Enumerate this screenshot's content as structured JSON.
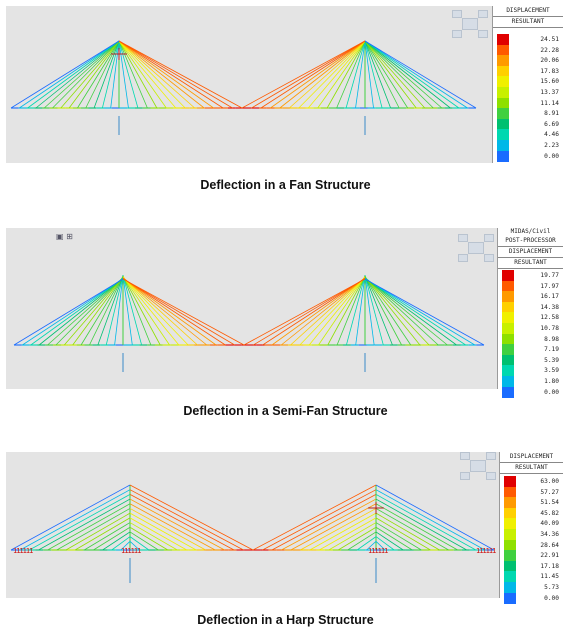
{
  "figures": [
    {
      "id": "fan",
      "caption": "Deflection in a Fan Structure",
      "legend_header": [
        "DISPLACEMENT",
        "RESULTANT"
      ],
      "legend_values": [
        "24.51",
        "22.28",
        "20.06",
        "17.83",
        "15.60",
        "13.37",
        "11.14",
        "8.91",
        "6.69",
        "4.46",
        "2.23",
        "0.00"
      ]
    },
    {
      "id": "semifan",
      "caption": "Deflection in a Semi-Fan Structure",
      "legend_header": [
        "MIDAS/Civil",
        "POST-PROCESSOR",
        "DISPLACEMENT",
        "RESULTANT"
      ],
      "legend_values": [
        "19.77",
        "17.97",
        "16.17",
        "14.38",
        "12.58",
        "10.78",
        "8.98",
        "7.19",
        "5.39",
        "3.59",
        "1.80",
        "0.00"
      ]
    },
    {
      "id": "harp",
      "caption": "Deflection in a Harp Structure",
      "legend_header": [
        "DISPLACEMENT",
        "RESULTANT"
      ],
      "legend_values": [
        "63.00",
        "57.27",
        "51.54",
        "45.82",
        "40.09",
        "34.36",
        "28.64",
        "22.91",
        "17.18",
        "11.45",
        "5.73",
        "0.00"
      ]
    }
  ],
  "legend_colors": [
    "#e00000",
    "#ff5a00",
    "#ff9a00",
    "#ffd000",
    "#f0f000",
    "#c8f000",
    "#8ee000",
    "#40d040",
    "#00c070",
    "#00d8b0",
    "#00b8e8",
    "#1a6cff"
  ],
  "support_marker_text": "111111"
}
